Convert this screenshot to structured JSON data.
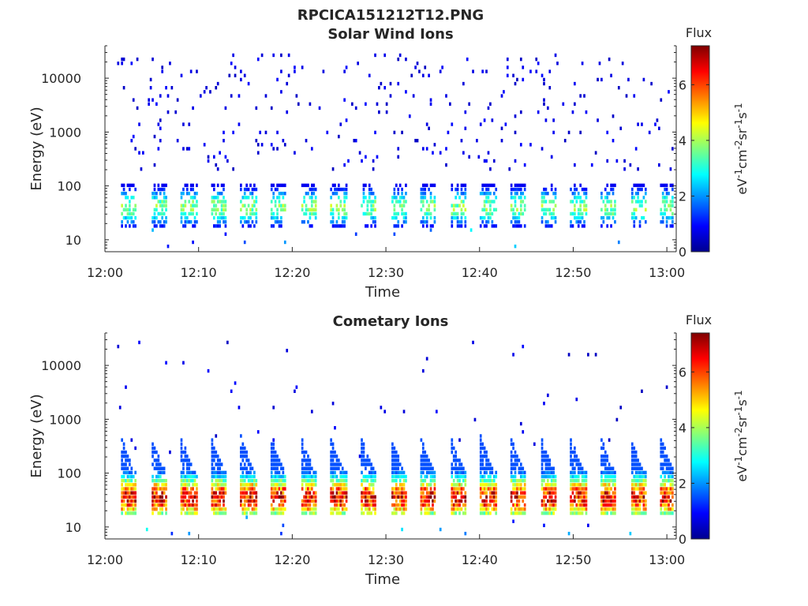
{
  "figure_title": "RPCICA151212T12.PNG",
  "colormap": [
    "#00008f",
    "#0000ff",
    "#007fff",
    "#00ffff",
    "#7fff7f",
    "#ffff00",
    "#ff7f00",
    "#ff0000",
    "#7f0000"
  ],
  "chart_data": [
    {
      "type": "heatmap",
      "title": "Solar Wind Ions",
      "xlabel": "Time",
      "ylabel": "Energy (eV)",
      "x_ticks": [
        "12:00",
        "12:10",
        "12:20",
        "12:30",
        "12:40",
        "12:50",
        "13:00"
      ],
      "x_range": [
        "12:00",
        "13:01"
      ],
      "y_scale": "log",
      "y_ticks": [
        10,
        100,
        1000,
        10000
      ],
      "y_range": [
        6,
        40000
      ],
      "colorbar": {
        "title": "Flux",
        "label": "eV-1cm-2sr-1s-1",
        "ticks": [
          0,
          2,
          4,
          6
        ],
        "range": [
          0,
          7.4
        ]
      },
      "description_of_pattern": "Sparse low-flux background; periodic bursts roughly every 3.2 min concentrated at 20-100 eV with peak flux about 4",
      "burst_period_min": 3.2,
      "burst_peak_flux": 4,
      "burst_energy_band_eV": [
        20,
        100
      ]
    },
    {
      "type": "heatmap",
      "title": "Cometary Ions",
      "xlabel": "Time",
      "ylabel": "Energy (eV)",
      "x_ticks": [
        "12:00",
        "12:10",
        "12:20",
        "12:30",
        "12:40",
        "12:50",
        "13:00"
      ],
      "x_range": [
        "12:00",
        "13:01"
      ],
      "y_scale": "log",
      "y_ticks": [
        10,
        100,
        1000,
        10000
      ],
      "y_range": [
        6,
        40000
      ],
      "colorbar": {
        "title": "Flux",
        "label": "eV-1cm-2sr-1s-1",
        "ticks": [
          0,
          2,
          4,
          6
        ],
        "range": [
          0,
          7.4
        ]
      },
      "description_of_pattern": "Periodic bursts roughly every 3.2 min; high flux (up to about 7) at 20-60 eV with tails reaching about 500 eV",
      "burst_period_min": 3.2,
      "burst_peak_flux": 7,
      "burst_energy_band_eV": [
        20,
        400
      ]
    }
  ]
}
